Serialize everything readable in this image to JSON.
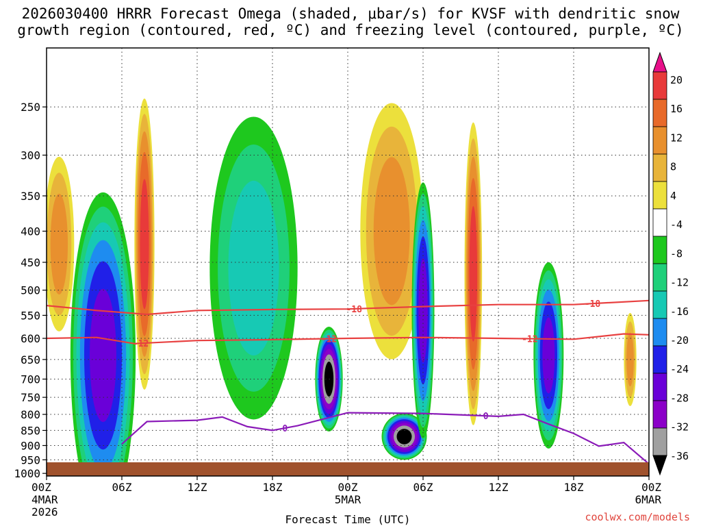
{
  "title": {
    "line1": "2026030400 HRRR Forecast Omega (shaded, μbar/s) for KVSF with dendritic snow",
    "line2": "growth region (contoured, red, ºC) and freezing level (contoured, purple, ºC)"
  },
  "credit": "coolwx.com/models",
  "colors": {
    "c_m36": "#000000",
    "c_m32": "#a0a0a0",
    "c_m28": "#8b00c8",
    "c_m24": "#6a00d8",
    "c_m20": "#2020e8",
    "c_m16": "#1e8cf0",
    "c_m12": "#17c9b4",
    "c_m8": "#1fd07a",
    "c_m4": "#1ec81e",
    "c_0": "#ffffff",
    "c_4": "#ece03c",
    "c_8": "#e8b43a",
    "c_12": "#e8902e",
    "c_16": "#e86a2a",
    "c_20": "#e83a3a",
    "c_max": "#e8108a",
    "dgz": "#e84040",
    "freeze": "#8a1ab8",
    "ground": "#a0522d"
  },
  "chart_data": {
    "type": "heatmap",
    "xlabel": "Forecast Time (UTC)",
    "x_ticks": [
      {
        "hour": 0,
        "label": "00Z",
        "sub1": "4MAR",
        "sub2": "2026"
      },
      {
        "hour": 6,
        "label": "06Z"
      },
      {
        "hour": 12,
        "label": "12Z"
      },
      {
        "hour": 18,
        "label": "18Z"
      },
      {
        "hour": 24,
        "label": "00Z",
        "sub1": "5MAR"
      },
      {
        "hour": 30,
        "label": "06Z"
      },
      {
        "hour": 36,
        "label": "12Z"
      },
      {
        "hour": 42,
        "label": "18Z"
      },
      {
        "hour": 48,
        "label": "00Z",
        "sub1": "6MAR"
      }
    ],
    "xlim": [
      0,
      48
    ],
    "ylabel": "",
    "y_scale": "log",
    "ylim": [
      1010,
      200
    ],
    "y_ticks": [
      250,
      300,
      350,
      400,
      450,
      500,
      550,
      600,
      650,
      700,
      750,
      800,
      850,
      900,
      950,
      1000
    ],
    "grid": true,
    "colorbar": {
      "labels": [
        "20",
        "16",
        "12",
        "8",
        "4",
        "-4",
        "-8",
        "-12",
        "-16",
        "-20",
        "-24",
        "-28",
        "-32",
        "-36"
      ],
      "units": "μbar/s"
    },
    "contour_labels": {
      "dgz_top": "-18",
      "dgz_bottom": "-12",
      "freezing": "0"
    },
    "dgz_top_level": [
      [
        0,
        530
      ],
      [
        4,
        540
      ],
      [
        8,
        548
      ],
      [
        12,
        540
      ],
      [
        18,
        538
      ],
      [
        24,
        537
      ],
      [
        30,
        532
      ],
      [
        36,
        528
      ],
      [
        42,
        528
      ],
      [
        48,
        520
      ]
    ],
    "dgz_bottom_level": [
      [
        0,
        600
      ],
      [
        4,
        598
      ],
      [
        7,
        612
      ],
      [
        12,
        605
      ],
      [
        18,
        603
      ],
      [
        24,
        600
      ],
      [
        30,
        598
      ],
      [
        36,
        600
      ],
      [
        42,
        602
      ],
      [
        46,
        590
      ],
      [
        48,
        592
      ]
    ],
    "freezing_level": [
      [
        6,
        895
      ],
      [
        8,
        822
      ],
      [
        12,
        818
      ],
      [
        14,
        808
      ],
      [
        16,
        838
      ],
      [
        18,
        850
      ],
      [
        20,
        835
      ],
      [
        24,
        795
      ],
      [
        30,
        797
      ],
      [
        36,
        806
      ],
      [
        38,
        800
      ],
      [
        40,
        830
      ],
      [
        42,
        860
      ],
      [
        44,
        902
      ],
      [
        46,
        890
      ],
      [
        48,
        965
      ]
    ],
    "omega_features": [
      {
        "t": 1,
        "p": 420,
        "v": 12,
        "w": 1.2,
        "h": 150
      },
      {
        "t": 4.5,
        "p": 640,
        "v": -24,
        "w": 2.6,
        "h": 280
      },
      {
        "t": 7.8,
        "p": 420,
        "v": 20,
        "w": 0.8,
        "h": 250
      },
      {
        "t": 16.5,
        "p": 460,
        "v": -12,
        "w": 3.5,
        "h": 260
      },
      {
        "t": 22.5,
        "p": 700,
        "v": -36,
        "w": 1.1,
        "h": 90
      },
      {
        "t": 27.5,
        "p": 400,
        "v": 12,
        "w": 2.5,
        "h": 220
      },
      {
        "t": 28.5,
        "p": 870,
        "v": -36,
        "w": 1.8,
        "h": 40
      },
      {
        "t": 30,
        "p": 540,
        "v": -24,
        "w": 0.9,
        "h": 220
      },
      {
        "t": 34,
        "p": 470,
        "v": 20,
        "w": 0.7,
        "h": 260
      },
      {
        "t": 40,
        "p": 640,
        "v": -24,
        "w": 1.2,
        "h": 160
      },
      {
        "t": 46.5,
        "p": 650,
        "v": 12,
        "w": 0.5,
        "h": 80
      }
    ]
  }
}
